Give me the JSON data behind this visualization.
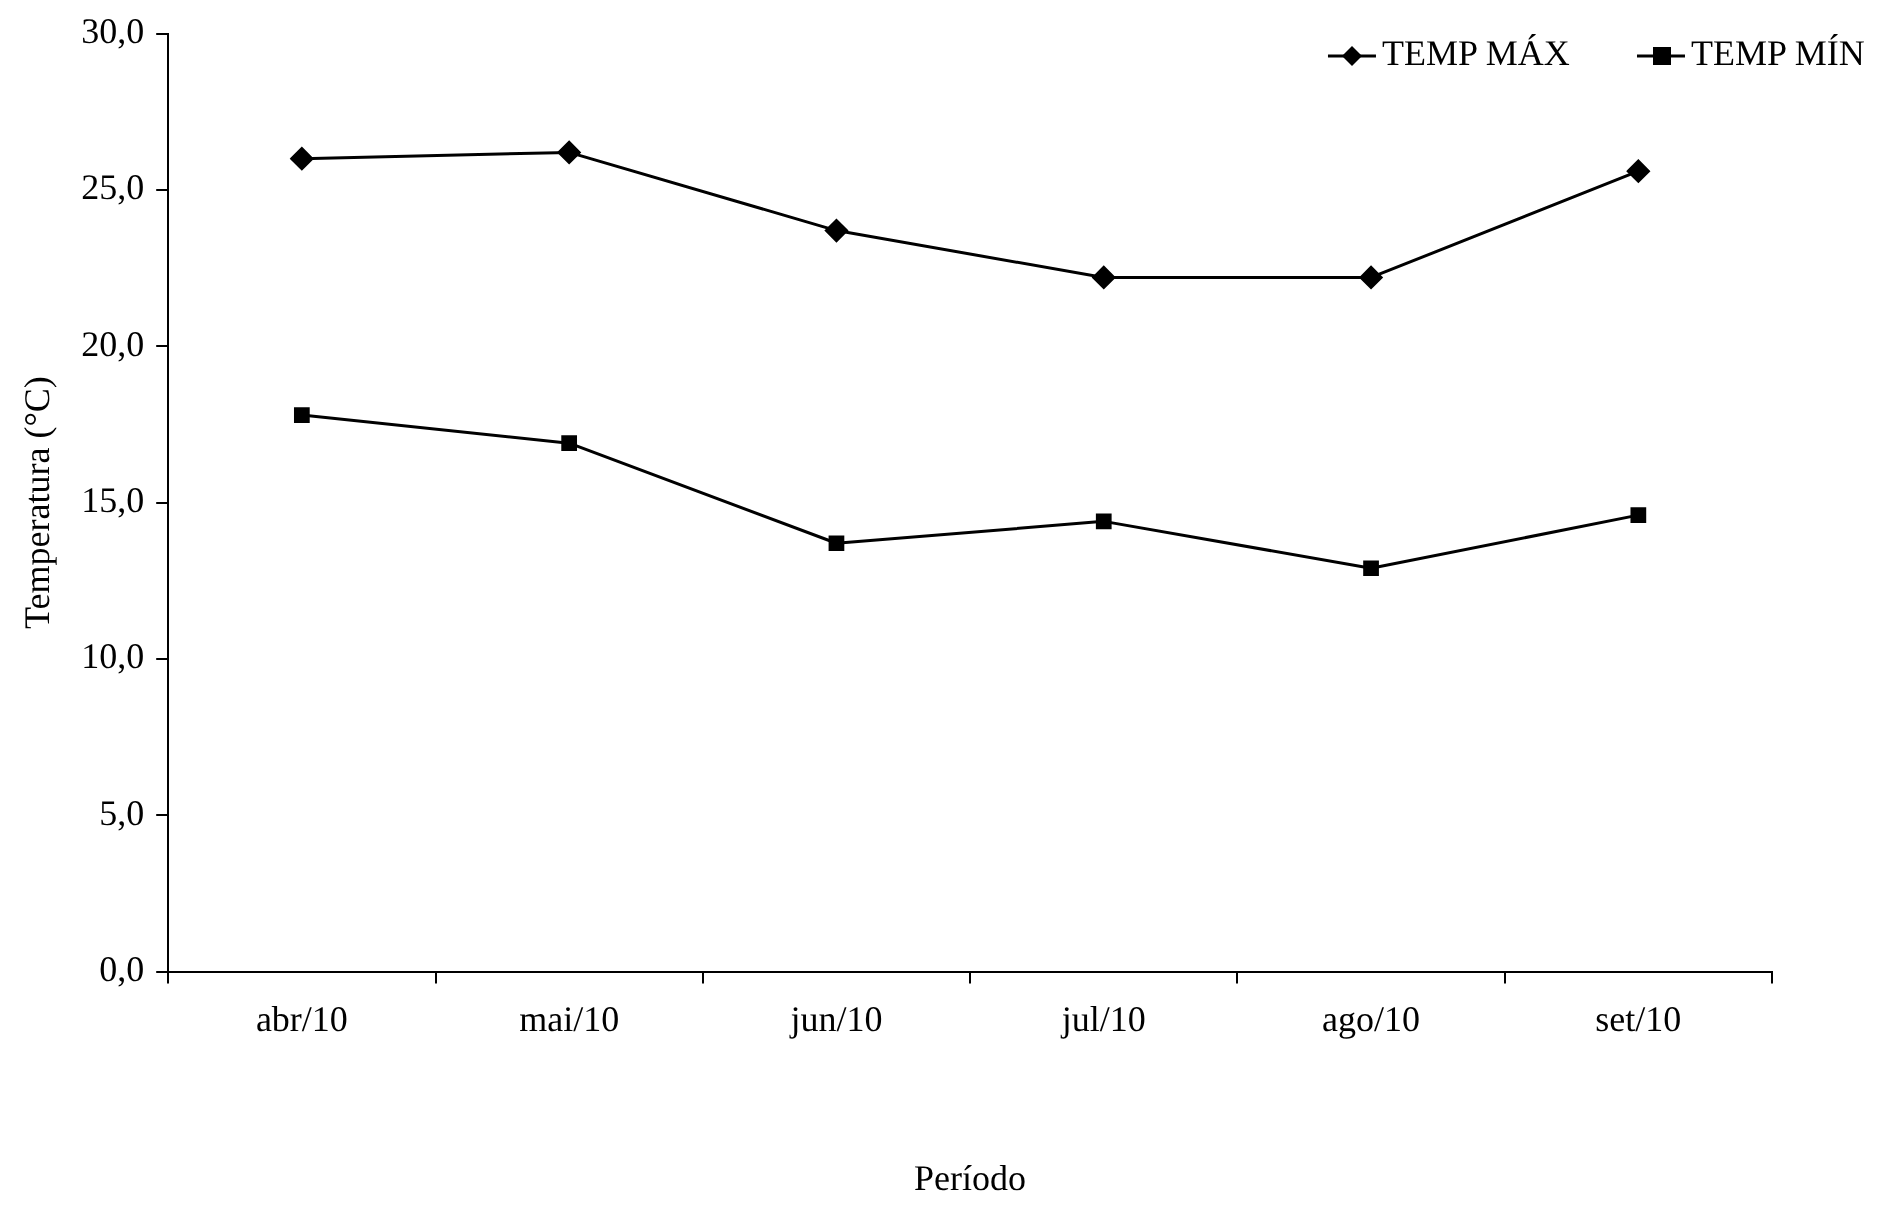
{
  "chart_data": {
    "type": "line",
    "xlabel": "Período",
    "ylabel": "Temperatura (°C)",
    "categories": [
      "abr/10",
      "mai/10",
      "jun/10",
      "jul/10",
      "ago/10",
      "set/10"
    ],
    "series": [
      {
        "name": "TEMP MÁX",
        "color": "#000000",
        "marker": "diamond",
        "values": [
          26.0,
          26.2,
          23.7,
          22.2,
          22.2,
          25.6
        ]
      },
      {
        "name": "TEMP MÍN",
        "color": "#000000",
        "marker": "square",
        "values": [
          17.8,
          16.9,
          13.7,
          14.4,
          12.9,
          14.6
        ]
      }
    ],
    "ylim": [
      0,
      30
    ],
    "yticks": [
      {
        "value": 0,
        "label": "0,0"
      },
      {
        "value": 5,
        "label": "5,0"
      },
      {
        "value": 10,
        "label": "10,0"
      },
      {
        "value": 15,
        "label": "15,0"
      },
      {
        "value": 20,
        "label": "20,0"
      },
      {
        "value": 25,
        "label": "25,0"
      },
      {
        "value": 30,
        "label": "30,0"
      }
    ],
    "grid": false,
    "legend": "top right",
    "line_style": "solid"
  }
}
